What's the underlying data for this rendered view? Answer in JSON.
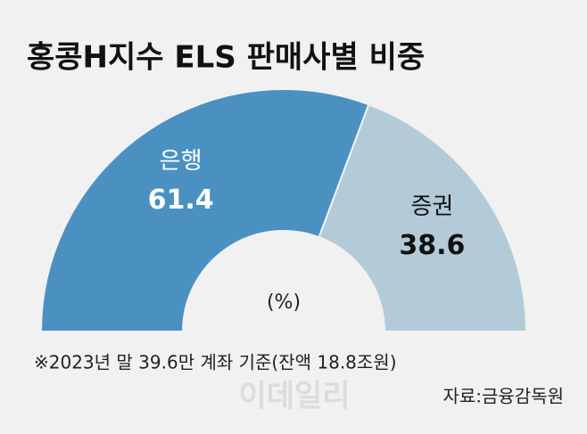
{
  "chart_data": {
    "type": "pie",
    "half": true,
    "title": "홍콩H지수 ELS 판매사별 비중",
    "categories": [
      "은행",
      "증권"
    ],
    "values": [
      61.4,
      38.6
    ],
    "colors": [
      "#4a91c2",
      "#b3cbd8"
    ],
    "label_colors": [
      "#ffffff",
      "#111111"
    ],
    "unit": "(%)",
    "note": "※2023년 말 39.6만 계좌 기준(잔액 18.8조원)",
    "source": "자료:금융감독원",
    "watermark": "이데일리"
  }
}
